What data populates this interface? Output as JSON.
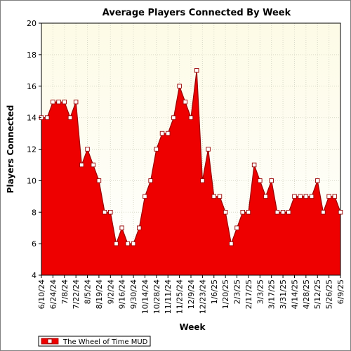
{
  "chart_data": {
    "type": "area",
    "title": "Average Players Connected By Week",
    "xlabel": "Week",
    "ylabel": "Players Connected",
    "ylim": [
      4,
      20
    ],
    "y_ticks": [
      4,
      6,
      8,
      10,
      12,
      14,
      16,
      18,
      20
    ],
    "x_tick_labels": [
      "6/10/24",
      "6/24/24",
      "7/8/24",
      "7/22/24",
      "8/5/24",
      "8/19/24",
      "9/2/24",
      "9/16/24",
      "9/30/24",
      "10/14/24",
      "10/28/24",
      "11/11/24",
      "11/25/24",
      "12/9/24",
      "12/23/24",
      "1/6/25",
      "1/20/25",
      "2/3/25",
      "2/17/25",
      "3/3/25",
      "3/17/25",
      "3/31/25",
      "4/14/25",
      "4/28/25",
      "5/12/25",
      "5/26/25",
      "6/9/25"
    ],
    "grid": true,
    "legend_position": "bottom-left",
    "colors": {
      "fill": "#ee0000",
      "line": "#990000",
      "plot_bg_top": "#fdfbe6",
      "plot_bg_bottom": "#ffffff",
      "grid": "#d9d9c8"
    },
    "series": [
      {
        "name": "The Wheel of Time MUD",
        "x": [
          "6/10/24",
          "6/17/24",
          "6/24/24",
          "7/1/24",
          "7/8/24",
          "7/15/24",
          "7/22/24",
          "7/29/24",
          "8/5/24",
          "8/12/24",
          "8/19/24",
          "8/26/24",
          "9/2/24",
          "9/9/24",
          "9/16/24",
          "9/23/24",
          "9/30/24",
          "10/7/24",
          "10/14/24",
          "10/21/24",
          "10/28/24",
          "11/4/24",
          "11/11/24",
          "11/18/24",
          "11/25/24",
          "12/2/24",
          "12/9/24",
          "12/16/24",
          "12/23/24",
          "12/30/24",
          "1/6/25",
          "1/13/25",
          "1/20/25",
          "1/27/25",
          "2/3/25",
          "2/10/25",
          "2/17/25",
          "2/24/25",
          "3/3/25",
          "3/10/25",
          "3/17/25",
          "3/24/25",
          "3/31/25",
          "4/7/25",
          "4/14/25",
          "4/21/25",
          "4/28/25",
          "5/5/25",
          "5/12/25",
          "5/19/25",
          "5/26/25",
          "6/2/25",
          "6/9/25"
        ],
        "values": [
          14,
          14,
          15,
          15,
          15,
          14,
          15,
          11,
          12,
          11,
          10,
          8,
          8,
          6,
          7,
          6,
          6,
          7,
          9,
          10,
          12,
          13,
          13,
          14,
          16,
          15,
          14,
          17,
          10,
          12,
          9,
          9,
          8,
          6,
          7,
          8,
          8,
          11,
          10,
          9,
          10,
          8,
          8,
          8,
          9,
          9,
          9,
          9,
          10,
          8,
          9,
          9,
          8
        ]
      }
    ]
  }
}
